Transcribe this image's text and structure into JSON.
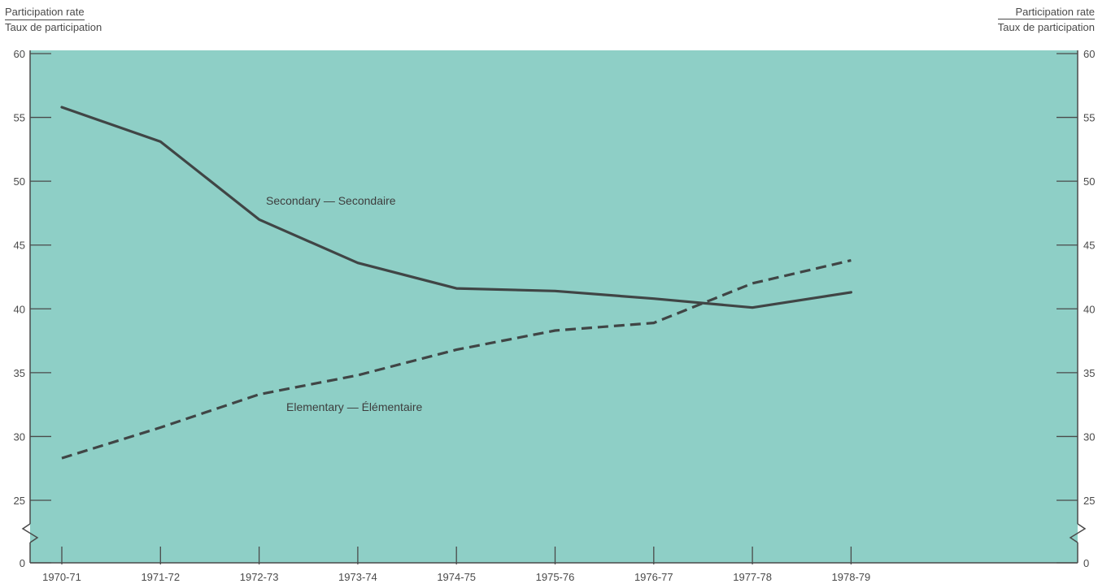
{
  "header": {
    "left_en": "Participation rate",
    "left_fr": "Taux de participation",
    "right_en": "Participation rate",
    "right_fr": "Taux de participation"
  },
  "colors": {
    "plot_bg": "#8ecfc6",
    "axis": "#4a4a4a",
    "line": "#404545"
  },
  "chart_data": {
    "type": "line",
    "title": "",
    "xlabel": "",
    "ylabel": "Participation rate / Taux de participation",
    "categories": [
      "1970-71",
      "1971-72",
      "1972-73",
      "1973-74",
      "1974-75",
      "1975-76",
      "1976-77",
      "1977-78",
      "1978-79"
    ],
    "ylim": [
      0,
      60
    ],
    "y_axis_break": [
      0,
      25
    ],
    "yticks": [
      0,
      25,
      30,
      35,
      40,
      45,
      50,
      55,
      60
    ],
    "grid": false,
    "secondary_y_axis": true,
    "series": [
      {
        "name": "Secondary — Secondaire",
        "style": "solid",
        "values": [
          55.8,
          53.1,
          47.0,
          43.6,
          41.6,
          41.4,
          40.8,
          40.1,
          41.3
        ]
      },
      {
        "name": "Elementary — Élémentaire",
        "style": "dashed",
        "values": [
          28.3,
          30.7,
          33.3,
          34.8,
          36.8,
          38.3,
          38.9,
          42.0,
          43.8
        ]
      }
    ]
  }
}
